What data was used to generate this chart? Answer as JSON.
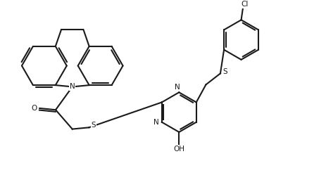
{
  "bg_color": "#ffffff",
  "line_color": "#1a1a1a",
  "line_width": 1.5,
  "figsize": [
    4.63,
    2.56
  ],
  "dpi": 100,
  "xlim": [
    0,
    10
  ],
  "ylim": [
    0,
    5.5
  ]
}
